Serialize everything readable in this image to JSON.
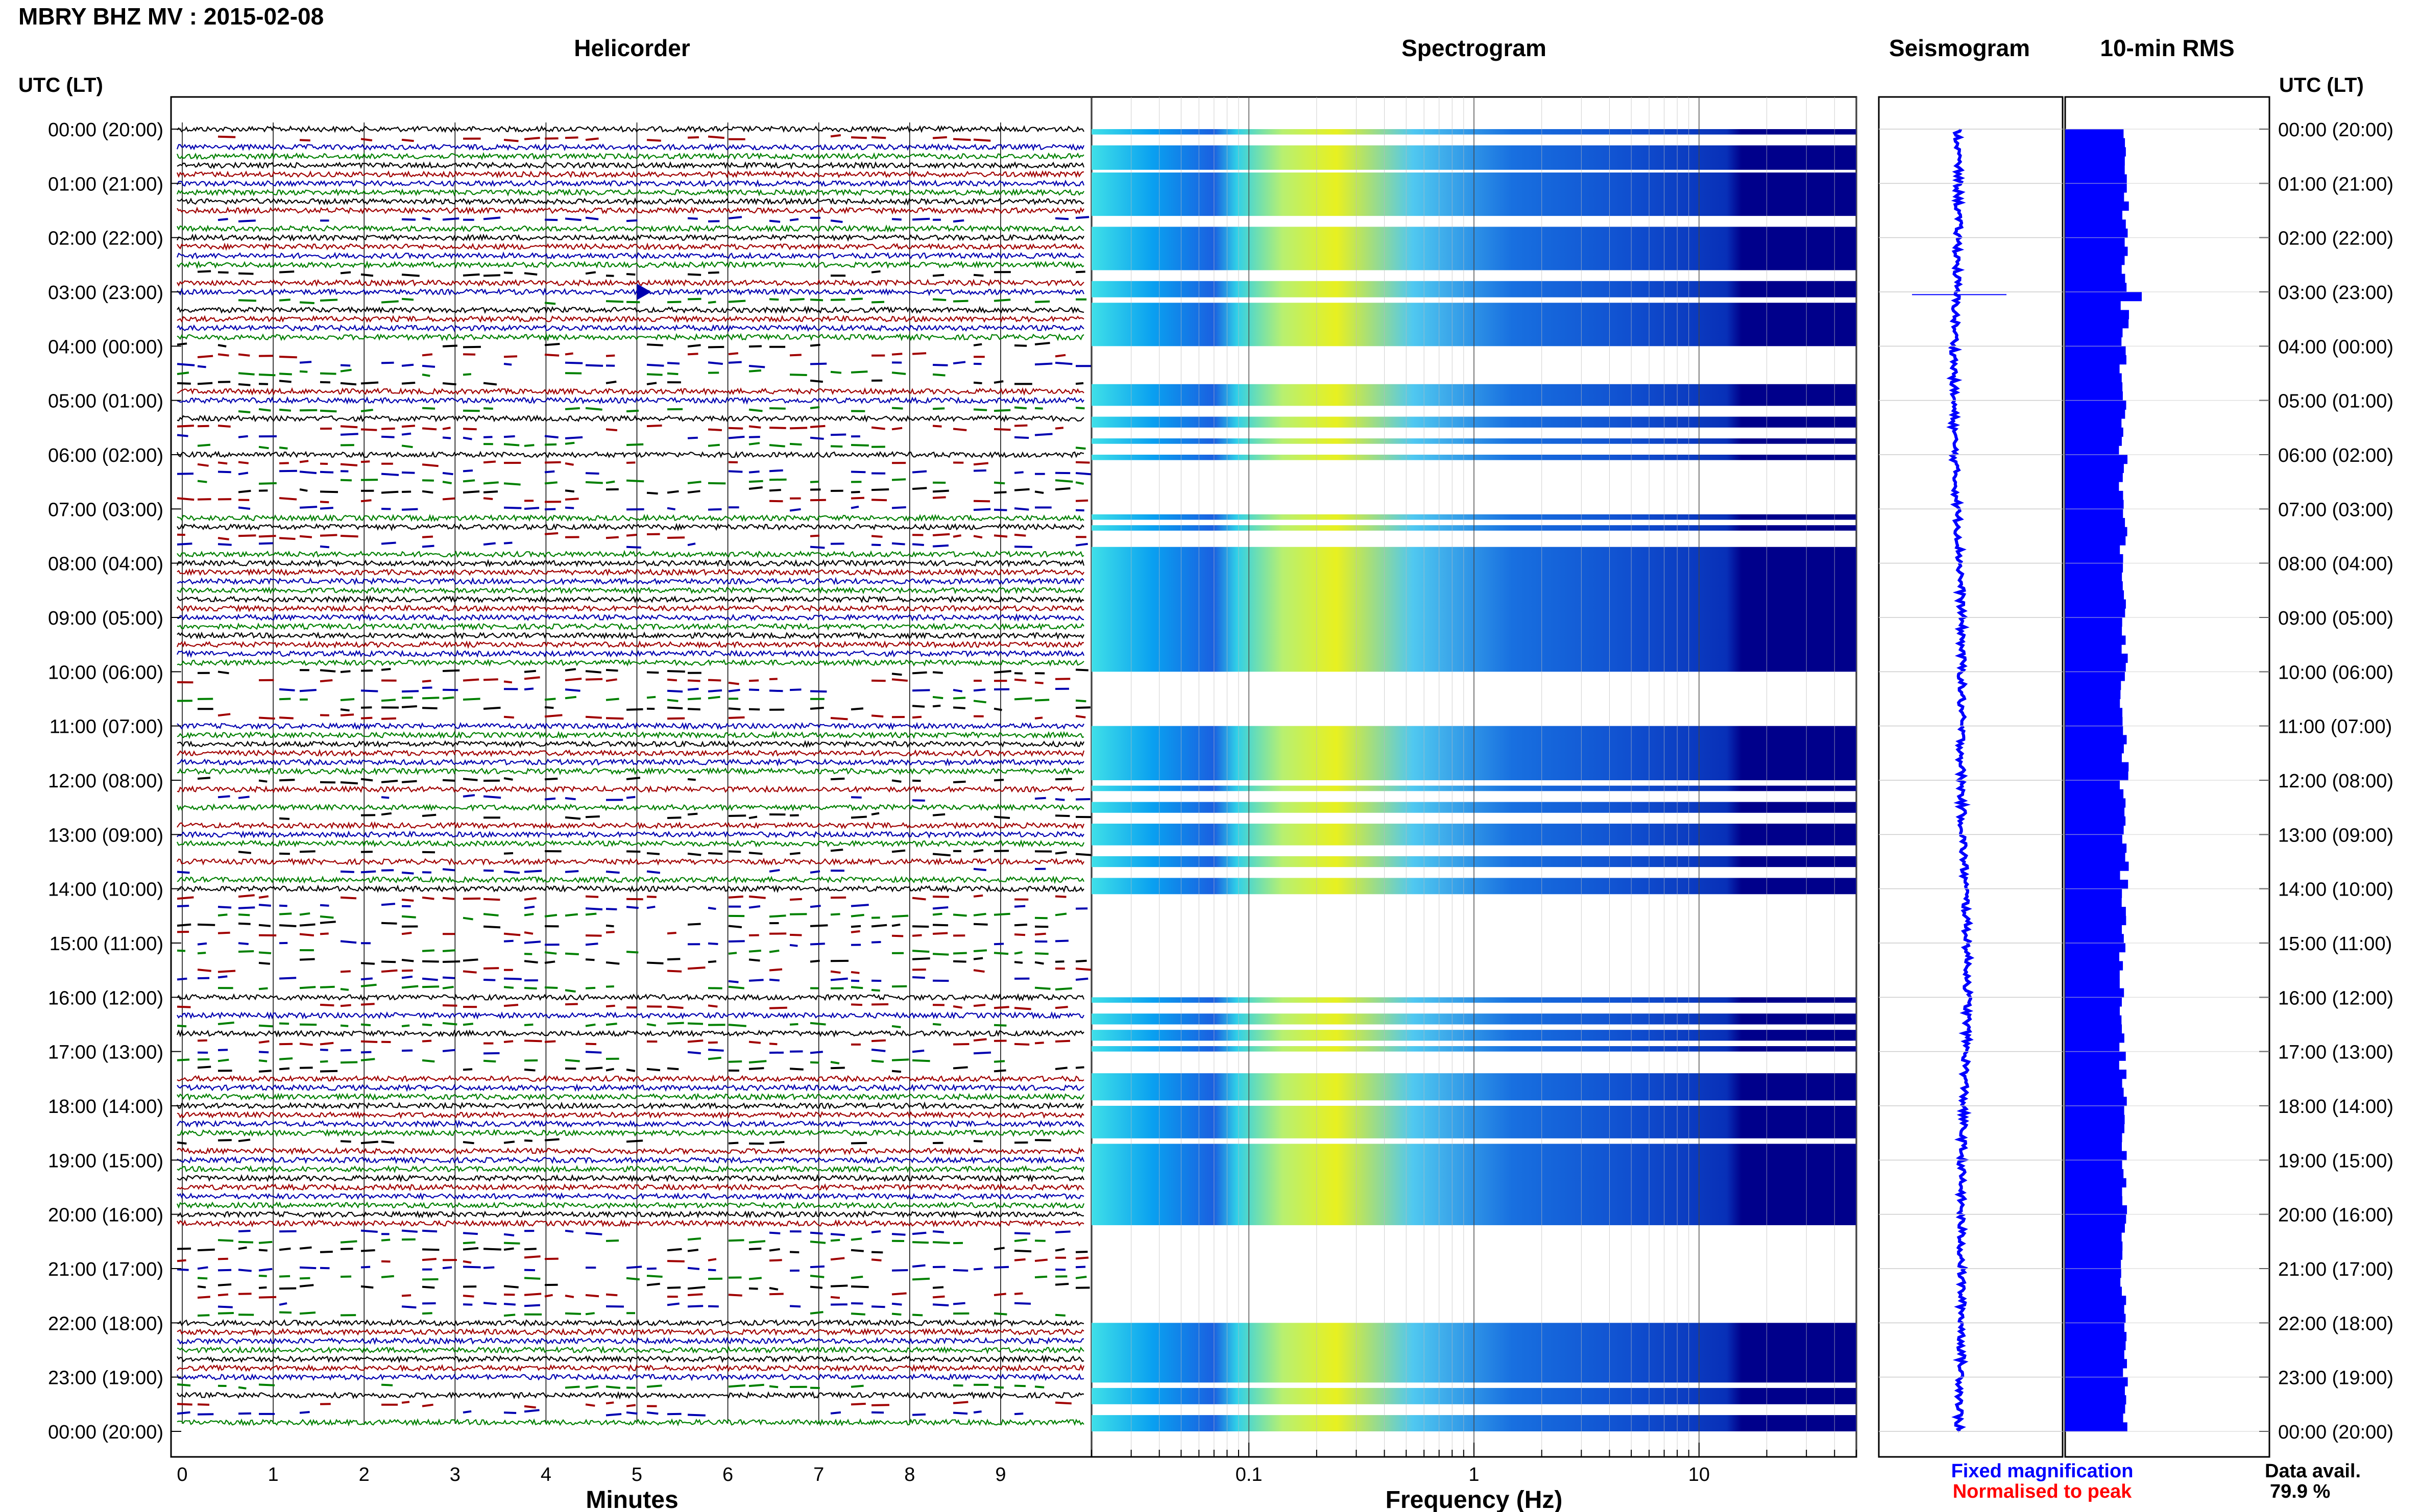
{
  "header": {
    "title": "MBRY BHZ MV : 2015-02-08",
    "axis_label_left": "UTC (LT)",
    "axis_label_right": "UTC (LT)"
  },
  "panels": {
    "helicorder": "Helicorder",
    "spectrogram": "Spectrogram",
    "seismogram": "Seismogram",
    "rms": "10-min RMS"
  },
  "time_labels": [
    "00:00 (20:00)",
    "01:00 (21:00)",
    "02:00 (22:00)",
    "03:00 (23:00)",
    "04:00 (00:00)",
    "05:00 (01:00)",
    "06:00 (02:00)",
    "07:00 (03:00)",
    "08:00 (04:00)",
    "09:00 (05:00)",
    "10:00 (06:00)",
    "11:00 (07:00)",
    "12:00 (08:00)",
    "13:00 (09:00)",
    "14:00 (10:00)",
    "15:00 (11:00)",
    "16:00 (12:00)",
    "17:00 (13:00)",
    "18:00 (14:00)",
    "19:00 (15:00)",
    "20:00 (16:00)",
    "21:00 (17:00)",
    "22:00 (18:00)",
    "23:00 (19:00)",
    "00:00 (20:00)"
  ],
  "footer": {
    "minutes_label": "Minutes",
    "frequency_label": "Frequency (Hz)",
    "legend_fixed": "Fixed magnification",
    "legend_normalised": "Normalised to peak",
    "data_avail_label": "Data avail.",
    "data_avail_value": "79.9 %"
  },
  "colors": {
    "fixed": "#0000ff",
    "normalised": "#ff0000",
    "trace_cycle": [
      "#000000",
      "#a00000",
      "#0000b0",
      "#008000"
    ],
    "spectrogram_low": "#00008b",
    "spectrogram_mid": "#00bfff",
    "spectrogram_high": "#ffff00"
  },
  "chart_data": [
    {
      "type": "helicorder",
      "title": "Helicorder",
      "xlabel": "Minutes",
      "x_ticks": [
        0,
        1,
        2,
        3,
        4,
        5,
        6,
        7,
        8,
        9
      ],
      "xlim": [
        0,
        10
      ],
      "traces_per_hour": 6,
      "hours": 24,
      "event": {
        "hour": 3,
        "minute": 5
      }
    },
    {
      "type": "heatmap",
      "title": "Spectrogram",
      "xlabel": "Frequency (Hz)",
      "x_scale": "log",
      "xlim": [
        0.02,
        50
      ],
      "x_ticks": [
        0.1,
        1,
        10
      ],
      "active_intervals_hours": [
        [
          0,
          0.1
        ],
        [
          0.3,
          0.75
        ],
        [
          0.8,
          1.6
        ],
        [
          1.8,
          2.6
        ],
        [
          2.8,
          3.1
        ],
        [
          3.2,
          4.0
        ],
        [
          4.7,
          5.1
        ],
        [
          5.3,
          5.5
        ],
        [
          5.7,
          5.8
        ],
        [
          6.0,
          6.1
        ],
        [
          7.1,
          7.2
        ],
        [
          7.3,
          7.4
        ],
        [
          7.7,
          10.0
        ],
        [
          11.0,
          12.0
        ],
        [
          12.1,
          12.2
        ],
        [
          12.4,
          12.6
        ],
        [
          12.8,
          13.2
        ],
        [
          13.4,
          13.6
        ],
        [
          13.8,
          14.1
        ],
        [
          16.0,
          16.1
        ],
        [
          16.3,
          16.5
        ],
        [
          16.6,
          16.8
        ],
        [
          16.9,
          17.0
        ],
        [
          17.4,
          17.9
        ],
        [
          18.0,
          18.6
        ],
        [
          18.7,
          20.2
        ],
        [
          22.0,
          23.1
        ],
        [
          23.2,
          23.5
        ],
        [
          23.7,
          24.0
        ]
      ]
    },
    {
      "type": "line",
      "title": "Seismogram",
      "hours": 24
    },
    {
      "type": "bar",
      "title": "10-min RMS",
      "orientation": "horizontal",
      "bin_minutes": 10,
      "hours": 24
    }
  ]
}
